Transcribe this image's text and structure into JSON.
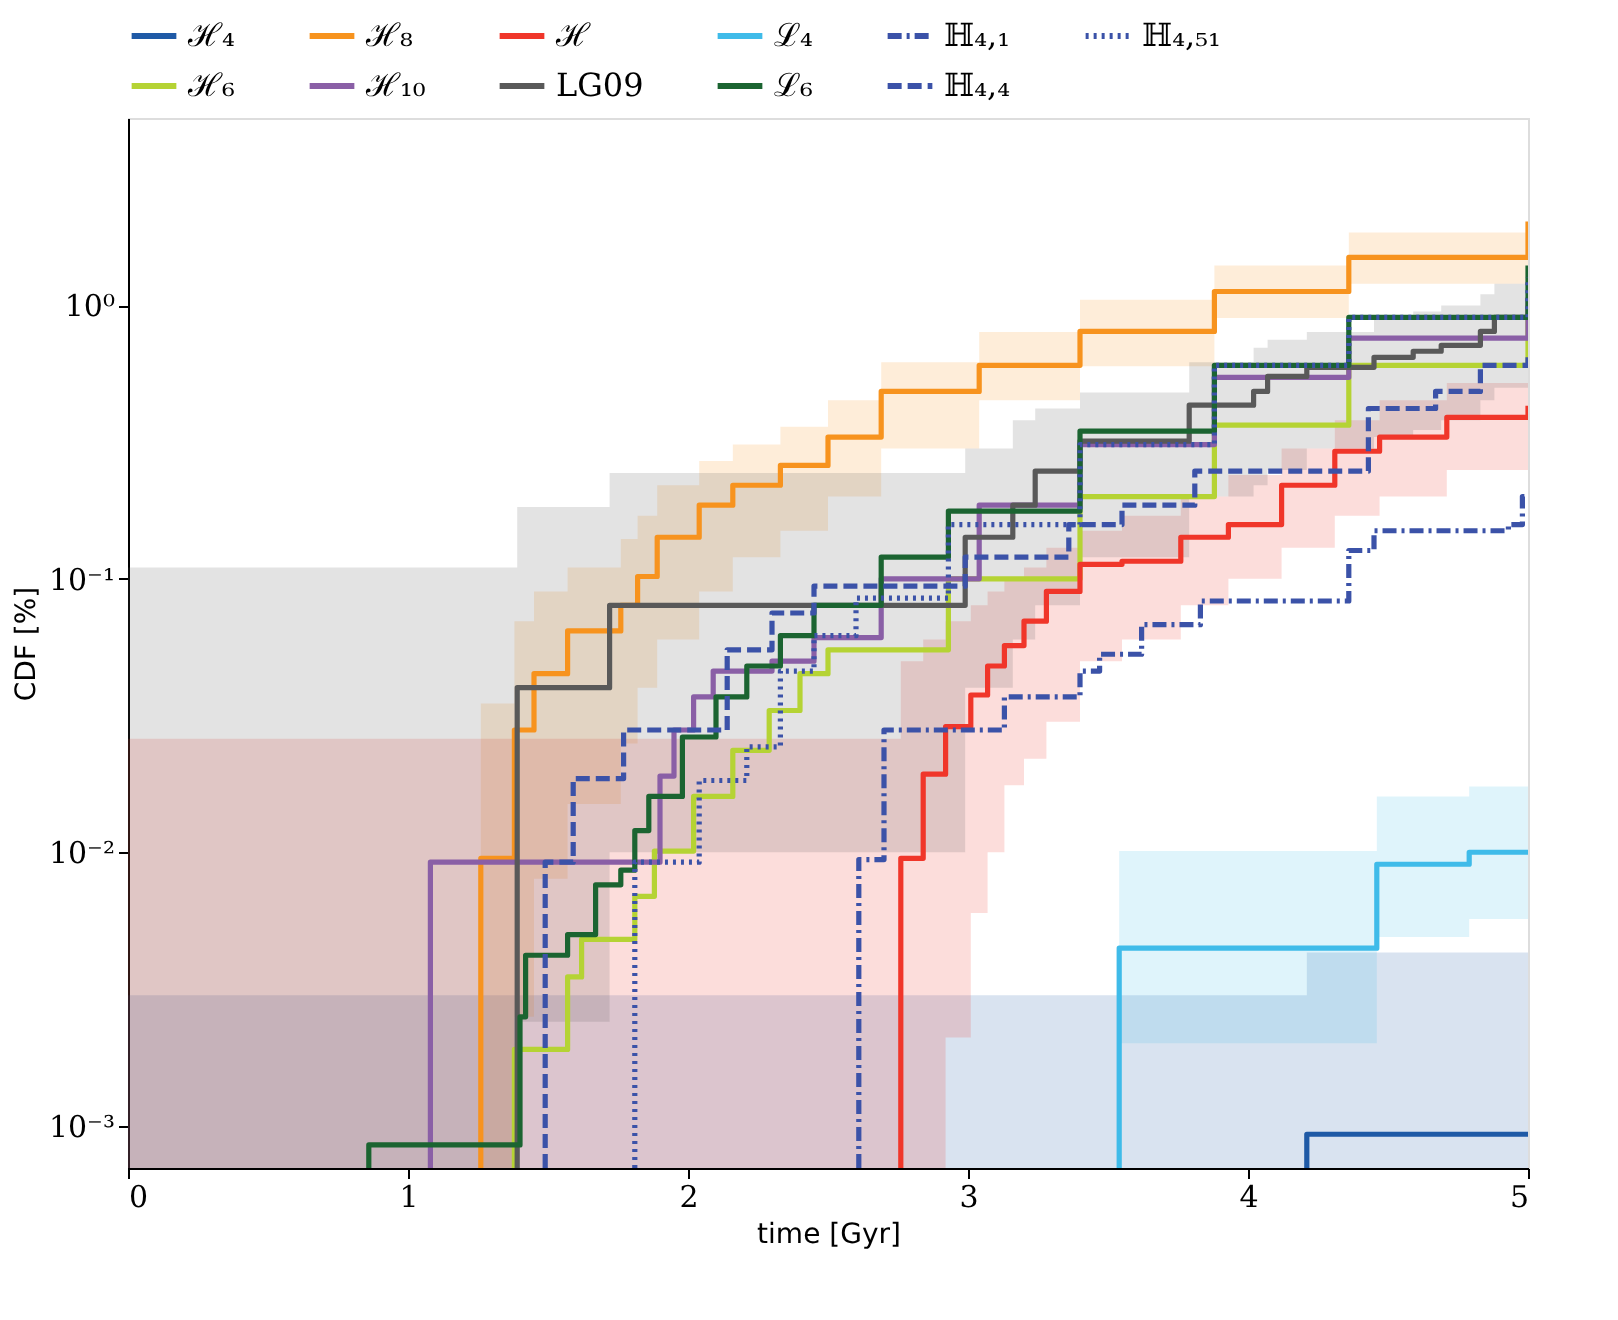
{
  "chart_data": {
    "type": "step",
    "xlabel": "time [Gyr]",
    "ylabel": "CDF [%]",
    "xlim": [
      0,
      5
    ],
    "xticks": [
      0,
      1,
      2,
      3,
      4,
      5
    ],
    "ylim": [
      0.0007,
      4.85
    ],
    "yticks": [
      {
        "value": 0.001,
        "label": "10⁻³"
      },
      {
        "value": 0.01,
        "label": "10⁻²"
      },
      {
        "value": 0.1,
        "label": "10⁻¹"
      },
      {
        "value": 1,
        "label": "10⁰"
      }
    ],
    "log": "y",
    "grid": false,
    "legend": "top",
    "marker": "none",
    "series": [
      {
        "name": "ℋ₄",
        "color": "#1f5aa6",
        "line_style": "solid",
        "x": [
          0,
          4.21,
          4.21,
          5
        ],
        "values": [
          null,
          0.0007,
          0.00093,
          0.00093
        ],
        "lower": [
          0.0007,
          0.0007,
          0.0007,
          0.0007
        ],
        "upper": [
          0.003,
          0.0043,
          0.0043,
          0.0043
        ]
      },
      {
        "name": "ℋ₆",
        "color": "#b5d334",
        "line_style": "solid",
        "x": [
          1.38,
          1.38,
          1.57,
          1.62,
          1.81,
          1.88,
          2.02,
          2.16,
          2.29,
          2.4,
          2.5,
          2.93,
          3.4,
          3.88,
          4.36,
          5
        ],
        "values": [
          0.0007,
          0.0019,
          0.0035,
          0.0048,
          0.0069,
          0.0101,
          0.016,
          0.0236,
          0.033,
          0.045,
          0.055,
          0.1,
          0.2,
          0.365,
          0.604,
          1.0
        ]
      },
      {
        "name": "ℋ₈",
        "color": "#f7931e",
        "line_style": "solid",
        "x": [
          1.26,
          1.26,
          1.38,
          1.45,
          1.57,
          1.76,
          1.82,
          1.89,
          2.04,
          2.16,
          2.33,
          2.5,
          2.69,
          3.04,
          3.4,
          3.88,
          4.36,
          5
        ],
        "values": [
          0.0007,
          0.0095,
          0.028,
          0.045,
          0.0645,
          0.08,
          0.102,
          0.142,
          0.186,
          0.22,
          0.26,
          0.33,
          0.485,
          0.604,
          0.804,
          1.125,
          1.5,
          2.03
        ],
        "lower": [
          0.0007,
          0.0007,
          0.0025,
          0.008,
          0.015,
          0.025,
          0.04,
          0.06,
          0.09,
          0.12,
          0.15,
          0.2,
          0.3,
          0.45,
          0.6,
          0.9,
          1.2,
          1.7
        ],
        "upper": [
          0.0007,
          0.035,
          0.07,
          0.09,
          0.11,
          0.14,
          0.17,
          0.22,
          0.27,
          0.31,
          0.36,
          0.45,
          0.62,
          0.8,
          1.05,
          1.4,
          1.85,
          2.4
        ]
      },
      {
        "name": "ℋ₁₀",
        "color": "#8a5fa6",
        "line_style": "solid",
        "x": [
          1.08,
          1.08,
          1.9,
          1.95,
          2.02,
          2.09,
          2.3,
          2.45,
          2.69,
          3.04,
          3.4,
          3.88,
          4.36,
          5
        ],
        "values": [
          0.0007,
          0.0092,
          0.019,
          0.028,
          0.037,
          0.046,
          0.05,
          0.061,
          0.1,
          0.186,
          0.31,
          0.546,
          0.76,
          1.07
        ]
      },
      {
        "name": "ℋ",
        "color": "#f0362a",
        "line_style": "solid",
        "x": [
          0,
          2.76,
          2.76,
          2.84,
          2.92,
          3.01,
          3.07,
          3.13,
          3.2,
          3.28,
          3.4,
          3.55,
          3.76,
          3.93,
          4.12,
          4.31,
          4.47,
          4.71,
          5
        ],
        "values": [
          null,
          0.0007,
          0.0095,
          0.0193,
          0.0288,
          0.0376,
          0.048,
          0.057,
          0.07,
          0.09,
          0.113,
          0.116,
          0.142,
          0.158,
          0.22,
          0.293,
          0.33,
          0.39,
          0.43
        ],
        "lower": [
          0.0007,
          0.0007,
          0.0007,
          0.0007,
          0.0021,
          0.006,
          0.01,
          0.0176,
          0.022,
          0.03,
          0.05,
          0.06,
          0.08,
          0.1,
          0.13,
          0.17,
          0.2,
          0.25,
          0.3
        ],
        "upper": [
          0.026,
          0.05,
          0.05,
          0.06,
          0.07,
          0.08,
          0.09,
          0.1,
          0.11,
          0.13,
          0.15,
          0.17,
          0.2,
          0.24,
          0.3,
          0.38,
          0.45,
          0.52,
          0.6
        ]
      },
      {
        "name": "LG09",
        "color": "#595959",
        "line_style": "solid",
        "x": [
          0,
          1.39,
          1.39,
          1.72,
          2.99,
          3.16,
          3.24,
          3.4,
          3.79,
          4.02,
          4.07,
          4.21,
          4.45,
          4.59,
          4.69,
          4.83,
          4.88,
          5
        ],
        "values": [
          null,
          0.0007,
          0.04,
          0.08,
          0.142,
          0.186,
          0.248,
          0.319,
          0.432,
          0.485,
          0.55,
          0.594,
          0.646,
          0.68,
          0.715,
          0.804,
          0.904,
          0.904
        ],
        "lower": [
          0.0007,
          0.0024,
          0.0024,
          0.01,
          0.04,
          0.06,
          0.08,
          0.12,
          0.2,
          0.22,
          0.25,
          0.3,
          0.33,
          0.35,
          0.38,
          0.45,
          0.5,
          0.5
        ],
        "upper": [
          0.11,
          0.183,
          0.183,
          0.244,
          0.3,
          0.38,
          0.42,
          0.48,
          0.62,
          0.7,
          0.75,
          0.8,
          0.9,
          0.95,
          1.0,
          1.1,
          1.2,
          1.2
        ]
      },
      {
        "name": "ℒ₄",
        "color": "#3fbbe9",
        "line_style": "solid",
        "x": [
          3.54,
          3.54,
          4.46,
          4.79,
          5
        ],
        "values": [
          0.0007,
          0.00446,
          0.00904,
          0.01,
          0.01
        ],
        "lower": [
          0.002,
          0.002,
          0.0049,
          0.0057,
          0.0057
        ],
        "upper": [
          0.0101,
          0.0101,
          0.016,
          0.0174,
          0.0174
        ]
      },
      {
        "name": "ℒ₆",
        "color": "#1b6431",
        "line_style": "solid",
        "x": [
          0.86,
          0.86,
          1.4,
          1.42,
          1.57,
          1.67,
          1.76,
          1.81,
          1.86,
          1.98,
          2.1,
          2.21,
          2.33,
          2.45,
          2.69,
          2.93,
          3.4,
          3.88,
          4.36,
          5
        ],
        "values": [
          0.0007,
          0.00085,
          0.0025,
          0.0042,
          0.005,
          0.0076,
          0.0086,
          0.012,
          0.016,
          0.0264,
          0.037,
          0.048,
          0.062,
          0.08,
          0.12,
          0.177,
          0.347,
          0.604,
          0.904,
          1.4
        ]
      },
      {
        "name": "ℍ₄,₁",
        "color": "#3b52a8",
        "line_style": "dashdot",
        "x": [
          2.61,
          2.61,
          2.7,
          3.13,
          3.4,
          3.47,
          3.62,
          3.83,
          4.36,
          4.45,
          4.93,
          4.98,
          5
        ],
        "values": [
          0.0007,
          0.0094,
          0.028,
          0.037,
          0.046,
          0.053,
          0.068,
          0.083,
          0.127,
          0.15,
          0.158,
          0.2,
          0.2
        ]
      },
      {
        "name": "ℍ₄,₄",
        "color": "#3b52a8",
        "line_style": "dashed",
        "x": [
          1.49,
          1.49,
          1.59,
          1.77,
          2.14,
          2.3,
          2.45,
          2.99,
          3.36,
          3.55,
          3.81,
          4.43,
          4.67,
          4.83,
          5
        ],
        "values": [
          0.0007,
          0.0092,
          0.0186,
          0.028,
          0.055,
          0.075,
          0.094,
          0.12,
          0.158,
          0.186,
          0.248,
          0.42,
          0.485,
          0.604,
          0.646
        ]
      },
      {
        "name": "ℍ₄,₅₁",
        "color": "#3b52a8",
        "line_style": "dotted",
        "x": [
          1.81,
          1.81,
          2.04,
          2.21,
          2.33,
          2.45,
          2.6,
          2.93,
          3.4,
          3.88,
          4.36,
          5
        ],
        "values": [
          0.0007,
          0.0092,
          0.0183,
          0.0243,
          0.046,
          0.062,
          0.085,
          0.158,
          0.31,
          0.604,
          0.904,
          1.27
        ]
      }
    ]
  }
}
